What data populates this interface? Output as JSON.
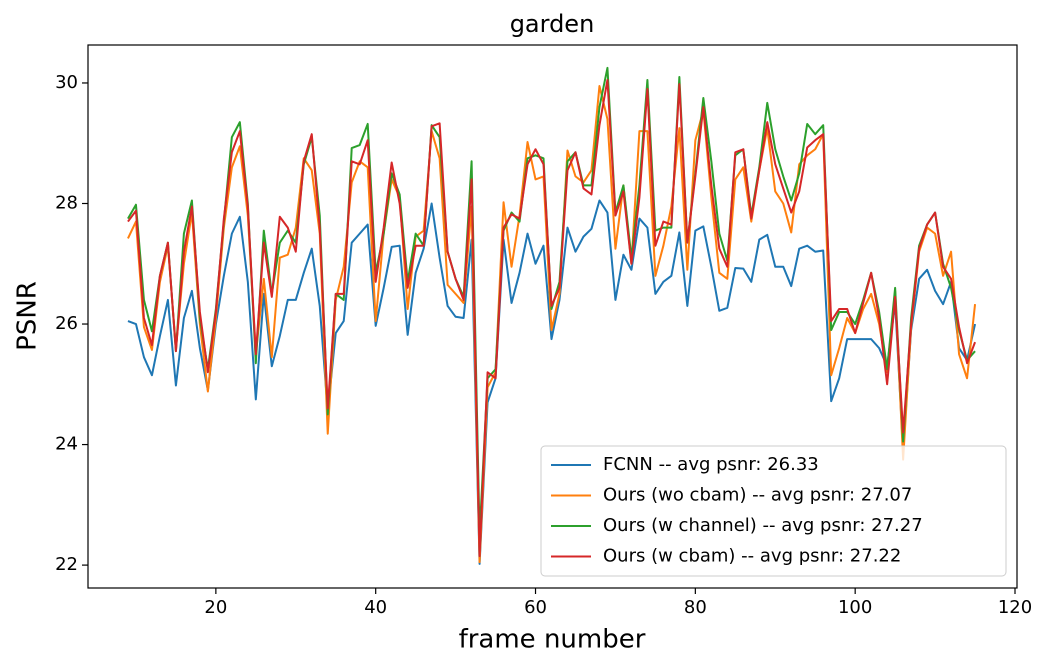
{
  "chart_data": {
    "type": "line",
    "title": "garden",
    "x_label": "frame number",
    "y_label": "PSNR",
    "x": [
      9,
      10,
      11,
      12,
      13,
      14,
      15,
      16,
      17,
      18,
      19,
      20,
      21,
      22,
      23,
      24,
      25,
      26,
      27,
      28,
      29,
      30,
      31,
      32,
      33,
      34,
      35,
      36,
      37,
      38,
      39,
      40,
      41,
      42,
      43,
      44,
      45,
      46,
      47,
      48,
      49,
      50,
      51,
      52,
      53,
      54,
      55,
      56,
      57,
      58,
      59,
      60,
      61,
      62,
      63,
      64,
      65,
      66,
      67,
      68,
      69,
      70,
      71,
      72,
      73,
      74,
      75,
      76,
      77,
      78,
      79,
      80,
      81,
      82,
      83,
      84,
      85,
      86,
      87,
      88,
      89,
      90,
      91,
      92,
      93,
      94,
      95,
      96,
      97,
      98,
      99,
      100,
      101,
      102,
      103,
      104,
      105,
      106,
      107,
      108,
      109,
      110,
      111,
      112,
      113,
      114,
      115
    ],
    "series": [
      {
        "name": "FCNN -- avg psnr: 26.33",
        "color": "#1f77b4",
        "values": [
          26.05,
          26.0,
          25.45,
          25.15,
          25.8,
          26.4,
          24.98,
          26.1,
          26.55,
          25.6,
          24.9,
          26.0,
          26.8,
          27.5,
          27.78,
          26.7,
          24.75,
          26.5,
          25.3,
          25.8,
          26.4,
          26.4,
          26.85,
          27.25,
          26.3,
          24.55,
          25.85,
          26.05,
          27.35,
          27.5,
          27.65,
          25.97,
          26.6,
          27.28,
          27.3,
          25.82,
          26.85,
          27.25,
          28.0,
          27.1,
          26.3,
          26.12,
          26.1,
          27.4,
          22.02,
          24.7,
          25.1,
          27.4,
          26.35,
          26.85,
          27.5,
          27.0,
          27.3,
          25.75,
          26.4,
          27.6,
          27.2,
          27.45,
          27.58,
          28.05,
          27.85,
          26.4,
          27.15,
          26.9,
          27.75,
          27.6,
          26.5,
          26.7,
          26.8,
          27.52,
          26.3,
          27.55,
          27.62,
          26.95,
          26.22,
          26.27,
          26.93,
          26.92,
          26.7,
          27.4,
          27.48,
          26.95,
          26.95,
          26.63,
          27.25,
          27.3,
          27.2,
          27.22,
          24.72,
          25.1,
          25.75,
          25.75,
          25.75,
          25.75,
          25.6,
          25.3,
          26.35,
          23.9,
          25.9,
          26.75,
          26.9,
          26.55,
          26.33,
          26.7,
          25.6,
          25.4,
          26.0
        ]
      },
      {
        "name": "Ours (wo cbam) -- avg psnr: 27.07",
        "color": "#ff7f0e",
        "values": [
          27.42,
          27.7,
          25.95,
          25.57,
          26.7,
          27.3,
          25.6,
          27.0,
          27.85,
          26.0,
          24.88,
          26.1,
          27.6,
          28.6,
          28.95,
          27.8,
          25.5,
          26.75,
          25.45,
          27.1,
          27.15,
          27.6,
          28.75,
          28.55,
          27.5,
          24.18,
          26.4,
          26.95,
          28.35,
          28.7,
          28.6,
          26.05,
          27.5,
          28.4,
          28.1,
          26.25,
          27.45,
          27.55,
          29.2,
          28.75,
          26.65,
          26.5,
          26.35,
          27.95,
          22.05,
          24.95,
          25.2,
          28.02,
          26.95,
          27.8,
          29.02,
          28.4,
          28.45,
          25.9,
          26.5,
          28.88,
          28.45,
          28.35,
          28.55,
          29.95,
          29.4,
          27.25,
          28.3,
          27.0,
          29.2,
          29.2,
          26.8,
          27.3,
          27.95,
          29.25,
          26.9,
          29.05,
          29.55,
          28.1,
          26.85,
          26.75,
          28.4,
          28.6,
          27.7,
          28.55,
          29.25,
          28.2,
          28.0,
          27.52,
          28.65,
          28.8,
          28.9,
          29.15,
          25.15,
          25.6,
          26.1,
          25.85,
          26.25,
          26.5,
          26.0,
          25.2,
          26.55,
          23.75,
          25.95,
          27.2,
          27.6,
          27.5,
          26.8,
          27.2,
          25.5,
          25.1,
          26.33
        ]
      },
      {
        "name": "Ours (w channel) -- avg psnr: 27.27",
        "color": "#2ca02c",
        "values": [
          27.75,
          27.98,
          26.4,
          25.88,
          26.8,
          27.35,
          25.55,
          27.5,
          28.05,
          26.1,
          25.25,
          26.25,
          27.7,
          29.1,
          29.35,
          28.0,
          25.35,
          27.55,
          26.5,
          27.35,
          27.55,
          27.35,
          28.65,
          29.1,
          27.8,
          24.5,
          26.5,
          26.4,
          28.92,
          28.97,
          29.32,
          26.85,
          27.5,
          28.5,
          28.15,
          26.7,
          27.5,
          27.3,
          29.3,
          29.1,
          27.2,
          26.75,
          26.45,
          28.7,
          22.5,
          25.1,
          25.25,
          27.55,
          27.85,
          27.7,
          28.75,
          28.8,
          28.75,
          26.25,
          26.7,
          28.7,
          28.85,
          28.3,
          28.3,
          29.6,
          30.25,
          27.85,
          28.3,
          27.1,
          28.3,
          30.05,
          27.55,
          27.6,
          27.6,
          30.1,
          27.35,
          28.5,
          29.75,
          28.7,
          27.5,
          27.05,
          28.8,
          28.9,
          27.8,
          28.6,
          29.67,
          28.9,
          28.45,
          28.05,
          28.5,
          29.32,
          29.15,
          29.3,
          25.9,
          26.2,
          26.2,
          26.0,
          26.4,
          26.85,
          26.2,
          25.25,
          26.6,
          24.05,
          26.1,
          27.3,
          27.65,
          27.85,
          27.0,
          26.6,
          25.9,
          25.4,
          25.55
        ]
      },
      {
        "name": "Ours (w cbam) -- avg psnr: 27.22",
        "color": "#d62728",
        "values": [
          27.7,
          27.88,
          26.1,
          25.65,
          26.8,
          27.35,
          25.55,
          27.2,
          27.95,
          26.2,
          25.2,
          26.2,
          27.75,
          28.85,
          29.2,
          27.95,
          25.5,
          27.35,
          26.45,
          27.78,
          27.6,
          27.2,
          28.7,
          29.15,
          27.6,
          24.6,
          26.5,
          26.5,
          28.7,
          28.65,
          29.05,
          26.7,
          27.6,
          28.68,
          28.0,
          26.6,
          27.3,
          27.3,
          29.28,
          29.33,
          27.2,
          26.75,
          26.4,
          28.4,
          22.15,
          25.2,
          25.1,
          27.6,
          27.82,
          27.75,
          28.65,
          28.9,
          28.65,
          26.3,
          26.6,
          28.55,
          28.85,
          28.25,
          28.15,
          29.3,
          30.05,
          27.8,
          28.2,
          27.0,
          28.1,
          29.9,
          27.3,
          27.7,
          27.65,
          29.98,
          27.35,
          28.45,
          29.6,
          28.3,
          27.25,
          26.95,
          28.85,
          28.9,
          27.75,
          28.55,
          29.35,
          28.65,
          28.25,
          27.85,
          28.2,
          28.93,
          29.05,
          29.15,
          26.05,
          26.25,
          26.25,
          25.85,
          26.35,
          26.85,
          26.1,
          25.0,
          26.45,
          24.2,
          26.0,
          27.25,
          27.65,
          27.85,
          26.95,
          26.75,
          25.95,
          25.35,
          25.7
        ]
      }
    ],
    "xlim": [
      4,
      120.25
    ],
    "ylim": [
      21.62,
      30.63
    ],
    "xticks": [
      20,
      40,
      60,
      80,
      100,
      120
    ],
    "yticks": [
      22,
      24,
      26,
      28,
      30
    ],
    "legend": "lower right",
    "grid": false
  }
}
